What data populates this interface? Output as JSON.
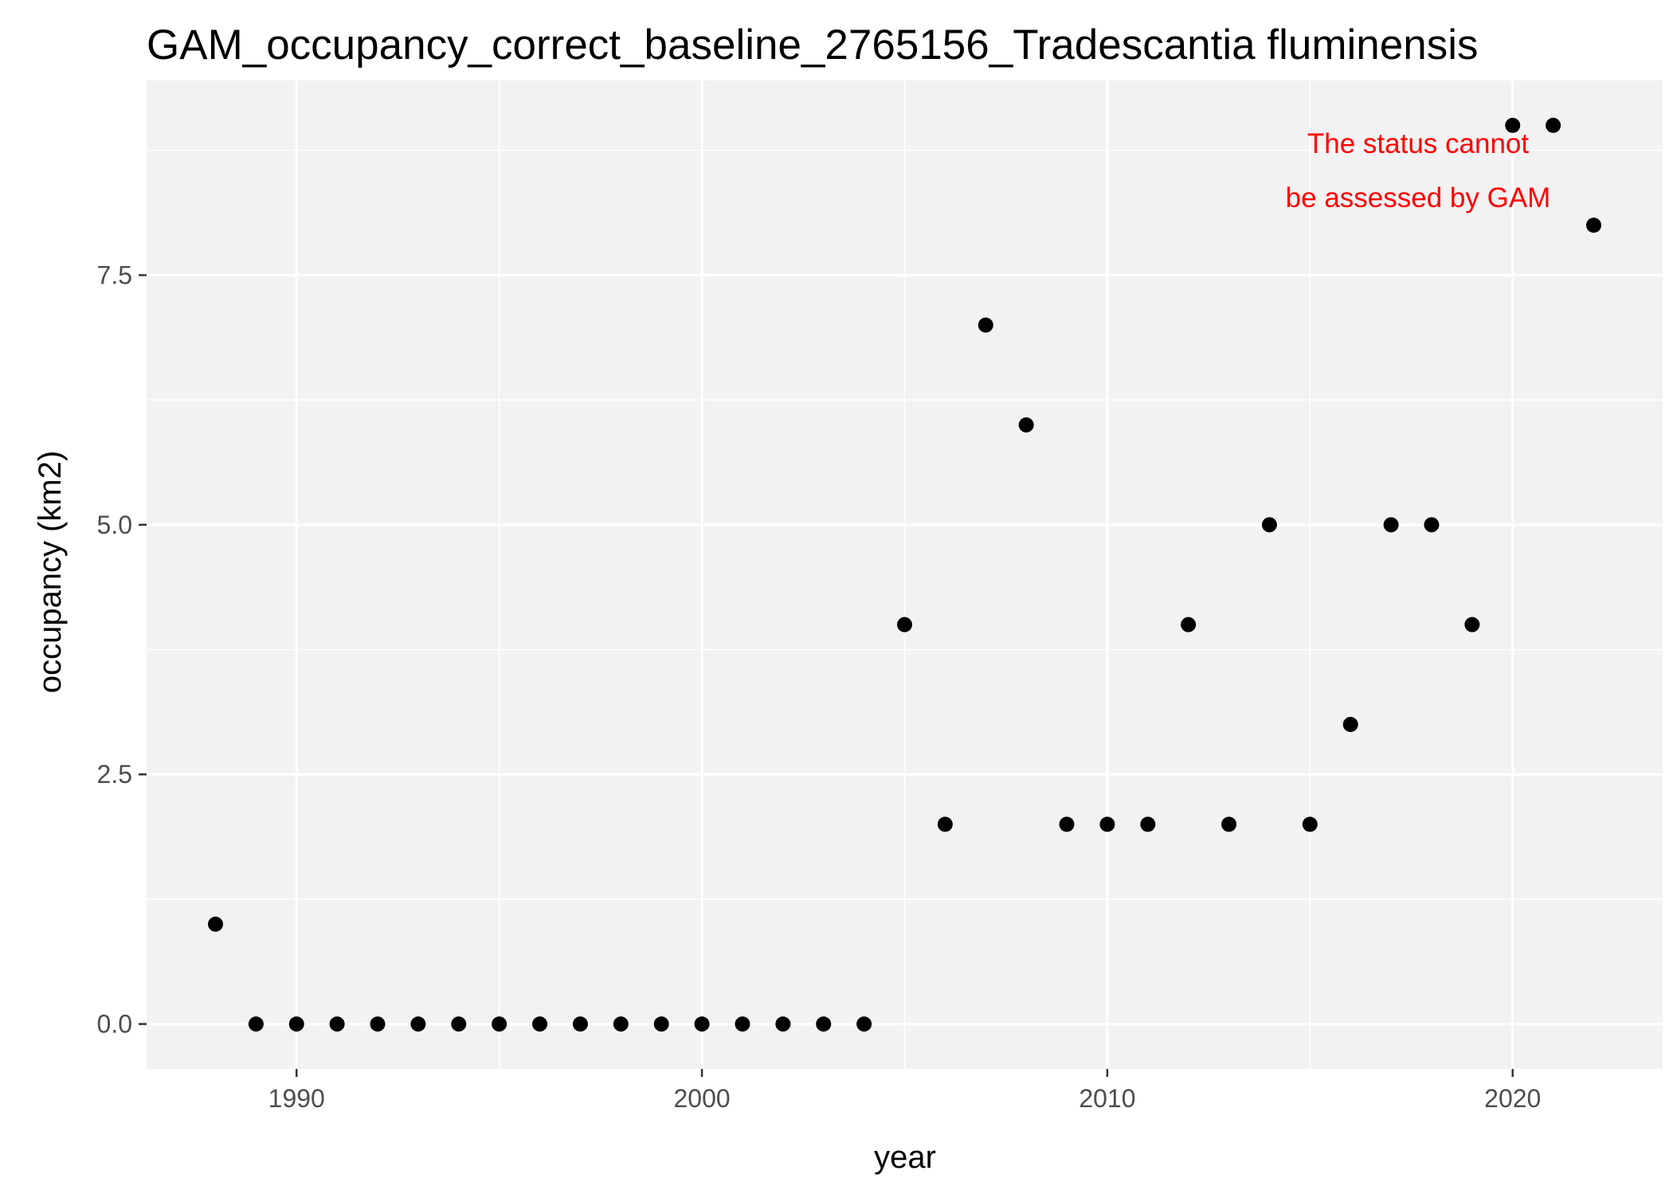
{
  "chart_data": {
    "type": "scatter",
    "title": "GAM_occupancy_correct_baseline_2765156_Tradescantia fluminensis",
    "xlabel": "year",
    "ylabel": "occupancy (km2)",
    "xlim": [
      1986.3,
      2023.7
    ],
    "ylim": [
      -0.45,
      9.45
    ],
    "x_ticks": [
      1990,
      2000,
      2010,
      2020
    ],
    "x_tick_labels": [
      "1990",
      "2000",
      "2010",
      "2020"
    ],
    "x_minor_ticks": [
      1995,
      2005,
      2015
    ],
    "y_ticks": [
      0,
      2.5,
      5,
      7.5
    ],
    "y_tick_labels": [
      "0.0",
      "2.5",
      "5.0",
      "7.5"
    ],
    "y_minor_ticks": [
      1.25,
      3.75,
      6.25,
      8.75
    ],
    "grid": true,
    "panel_background": "#f2f2f2",
    "grid_color": "#ffffff",
    "point_color": "#000000",
    "annotation": {
      "lines": [
        "The status cannot",
        "be assessed by GAM"
      ],
      "color": "#ff0000"
    },
    "x": [
      1988,
      1989,
      1990,
      1991,
      1992,
      1993,
      1994,
      1995,
      1996,
      1997,
      1998,
      1999,
      2000,
      2001,
      2002,
      2003,
      2004,
      2005,
      2006,
      2007,
      2008,
      2009,
      2010,
      2011,
      2012,
      2013,
      2014,
      2015,
      2016,
      2017,
      2018,
      2019,
      2020,
      2021,
      2022
    ],
    "y": [
      1,
      0,
      0,
      0,
      0,
      0,
      0,
      0,
      0,
      0,
      0,
      0,
      0,
      0,
      0,
      0,
      0,
      4,
      2,
      7,
      6,
      2,
      2,
      2,
      4,
      2,
      5,
      2,
      3,
      5,
      5,
      4,
      9,
      9,
      8
    ]
  }
}
